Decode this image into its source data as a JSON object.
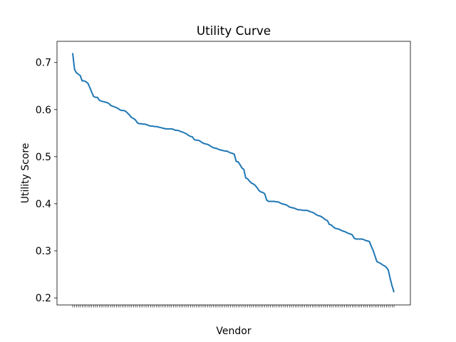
{
  "chart_data": {
    "type": "line",
    "title": "Utility Curve",
    "xlabel": "Vendor",
    "ylabel": "Utility Score",
    "ylim": [
      0.185,
      0.745
    ],
    "yticks": [
      "0.2",
      "0.3",
      "0.4",
      "0.5",
      "0.6",
      "0.7"
    ],
    "ytick_values": [
      0.2,
      0.3,
      0.4,
      0.5,
      0.6,
      0.7
    ],
    "grid": false,
    "legend": "none",
    "series": [
      {
        "color": "#1f77b4",
        "values": [
          0.72,
          0.685,
          0.678,
          0.675,
          0.672,
          0.661,
          0.661,
          0.659,
          0.656,
          0.647,
          0.637,
          0.628,
          0.626,
          0.626,
          0.62,
          0.618,
          0.617,
          0.616,
          0.615,
          0.613,
          0.609,
          0.607,
          0.606,
          0.604,
          0.602,
          0.599,
          0.598,
          0.598,
          0.596,
          0.592,
          0.588,
          0.583,
          0.581,
          0.578,
          0.572,
          0.57,
          0.57,
          0.569,
          0.569,
          0.568,
          0.566,
          0.565,
          0.565,
          0.564,
          0.564,
          0.563,
          0.562,
          0.561,
          0.56,
          0.559,
          0.559,
          0.559,
          0.559,
          0.558,
          0.556,
          0.556,
          0.555,
          0.553,
          0.552,
          0.55,
          0.548,
          0.545,
          0.543,
          0.542,
          0.536,
          0.535,
          0.535,
          0.533,
          0.53,
          0.528,
          0.527,
          0.526,
          0.524,
          0.521,
          0.519,
          0.518,
          0.517,
          0.515,
          0.514,
          0.513,
          0.512,
          0.512,
          0.51,
          0.508,
          0.507,
          0.505,
          0.49,
          0.489,
          0.483,
          0.476,
          0.473,
          0.455,
          0.453,
          0.448,
          0.444,
          0.442,
          0.439,
          0.434,
          0.428,
          0.425,
          0.424,
          0.421,
          0.408,
          0.405,
          0.405,
          0.405,
          0.405,
          0.404,
          0.404,
          0.402,
          0.4,
          0.399,
          0.398,
          0.396,
          0.393,
          0.392,
          0.391,
          0.39,
          0.388,
          0.387,
          0.387,
          0.386,
          0.386,
          0.386,
          0.385,
          0.383,
          0.382,
          0.38,
          0.377,
          0.375,
          0.374,
          0.372,
          0.369,
          0.366,
          0.364,
          0.356,
          0.355,
          0.351,
          0.348,
          0.347,
          0.346,
          0.344,
          0.342,
          0.341,
          0.339,
          0.337,
          0.336,
          0.334,
          0.327,
          0.325,
          0.325,
          0.325,
          0.325,
          0.324,
          0.322,
          0.321,
          0.32,
          0.31,
          0.301,
          0.289,
          0.277,
          0.275,
          0.273,
          0.27,
          0.268,
          0.265,
          0.259,
          0.241,
          0.225,
          0.212
        ]
      }
    ],
    "x_tick_labels_note": "tiny illegible vendor labels"
  }
}
